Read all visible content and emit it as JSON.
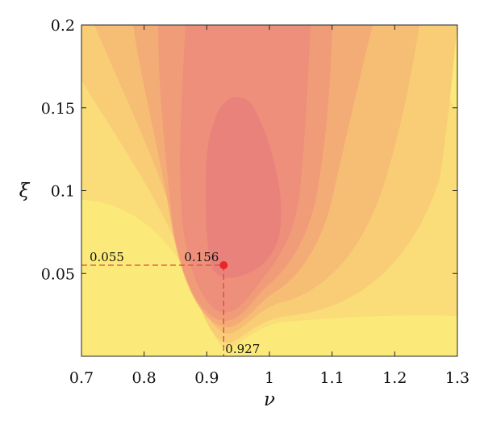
{
  "chart_data": {
    "type": "heatmap",
    "xlabel": "ν",
    "ylabel": "ξ",
    "xlim": [
      0.7,
      1.3
    ],
    "ylim": [
      0.0,
      0.2
    ],
    "x_ticks": [
      0.7,
      0.8,
      0.9,
      1.0,
      1.1,
      1.2,
      1.3
    ],
    "x_tick_labels": [
      "0.7",
      "0.8",
      "0.9",
      "1",
      "1.1",
      "1.2",
      "1.3"
    ],
    "y_ticks": [
      0.05,
      0.1,
      0.15,
      0.2
    ],
    "y_tick_labels": [
      "0.05",
      "0.1",
      "0.15",
      "0.2"
    ],
    "grid": false,
    "colors": {
      "levels": [
        "#fbe97a",
        "#fadc78",
        "#f8cd76",
        "#f6bd74",
        "#f4ac76",
        "#f19c78",
        "#ee8f7b",
        "#ea827c"
      ],
      "marker": "#e8262a",
      "guide": "#e0473a"
    },
    "optimum": {
      "x": 0.927,
      "y": 0.055,
      "value": 0.156,
      "x_label": "0.927",
      "y_label": "0.055",
      "value_label": "0.156"
    }
  }
}
